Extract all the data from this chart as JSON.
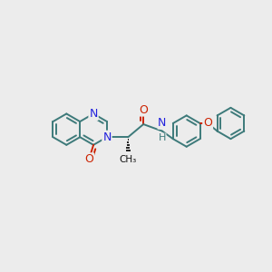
{
  "background_color": "#ececec",
  "bond_color": "#3d7a7a",
  "N_color": "#2222dd",
  "O_color": "#cc2200",
  "bond_lw": 1.4,
  "figsize": [
    3.0,
    3.0
  ],
  "dpi": 100,
  "xlim": [
    -2.3,
    2.5
  ],
  "ylim": [
    -1.4,
    1.4
  ]
}
